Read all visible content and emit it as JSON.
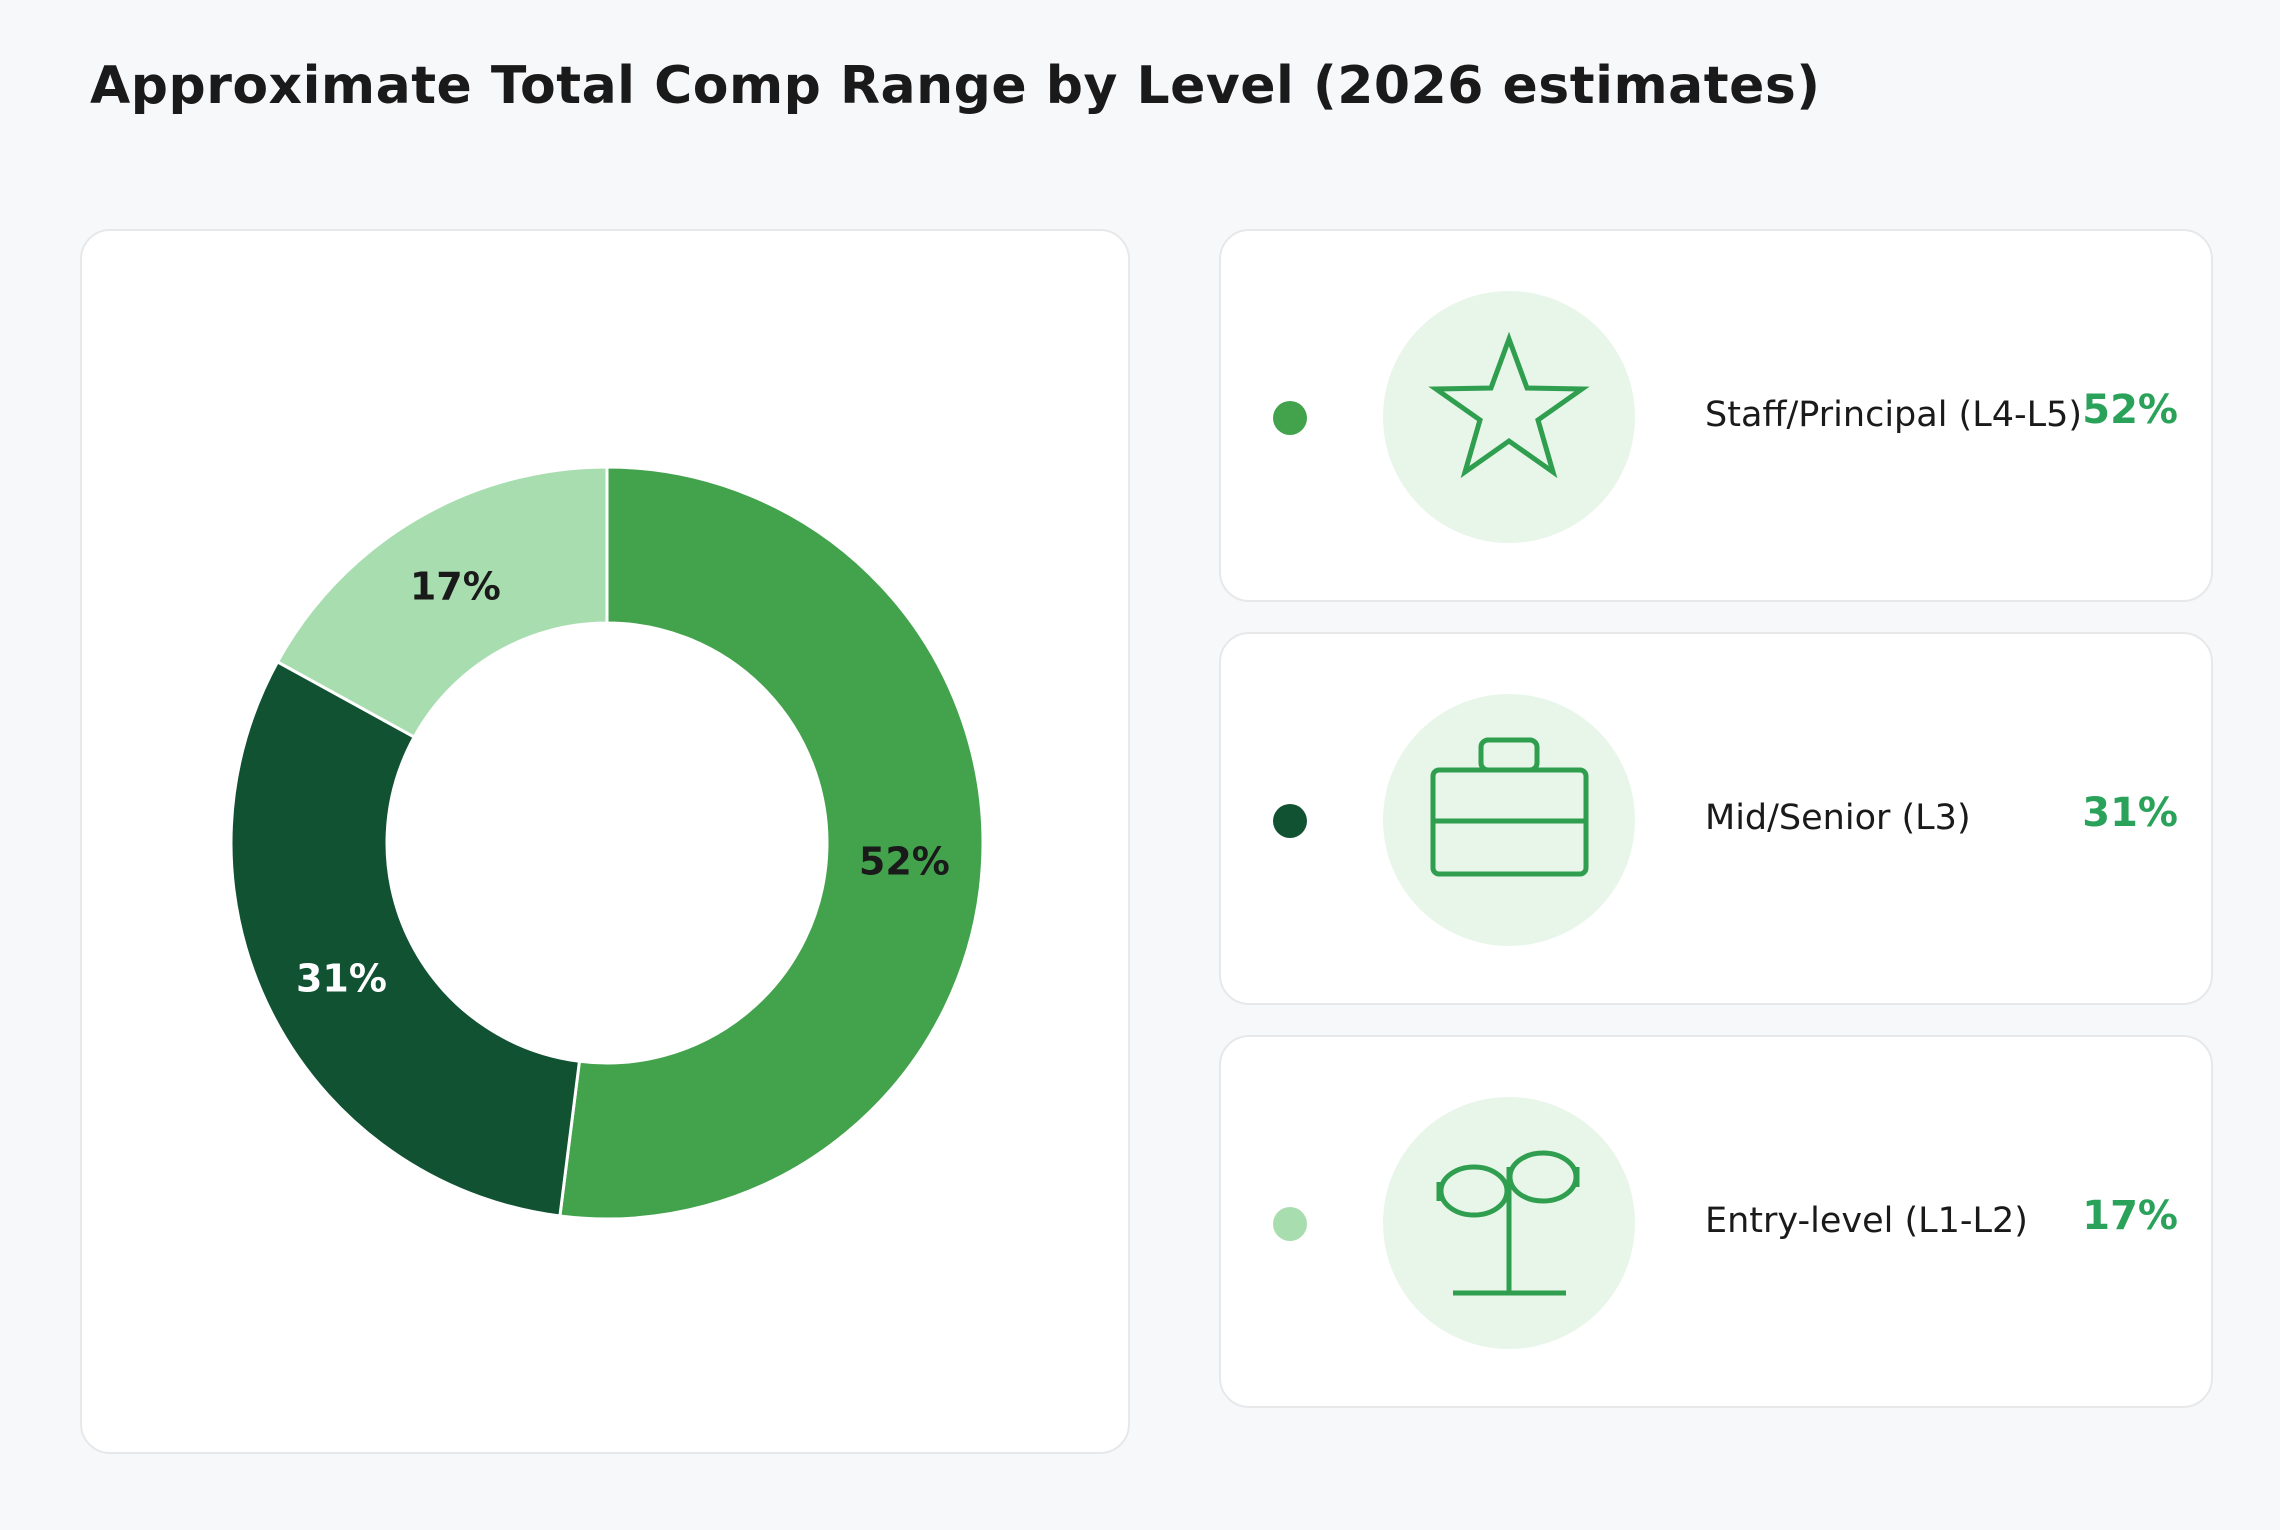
{
  "title": "Approximate Total Comp Range by Level (2026 estimates)",
  "chart_data": {
    "type": "pie",
    "donut": true,
    "title": "Approximate Total Comp Range by Level (2026 estimates)",
    "slices": [
      {
        "label": "Staff/Principal (L4-L5)",
        "value": 52,
        "display": "52%",
        "color": "#43a34d",
        "text_color": "#1a1a1a",
        "icon": "star-icon"
      },
      {
        "label": "Mid/Senior (L3)",
        "value": 31,
        "display": "31%",
        "color": "#115233",
        "text_color": "#ffffff",
        "icon": "briefcase-icon"
      },
      {
        "label": "Entry-level (L1-L2)",
        "value": 17,
        "display": "17%",
        "color": "#a8ddb0",
        "text_color": "#1a1a1a",
        "icon": "sprout-icon"
      }
    ]
  },
  "colors": {
    "accent": "#2aa25a",
    "icon_stroke": "#2f9e4f",
    "icon_bg": "#e8f6ea"
  }
}
